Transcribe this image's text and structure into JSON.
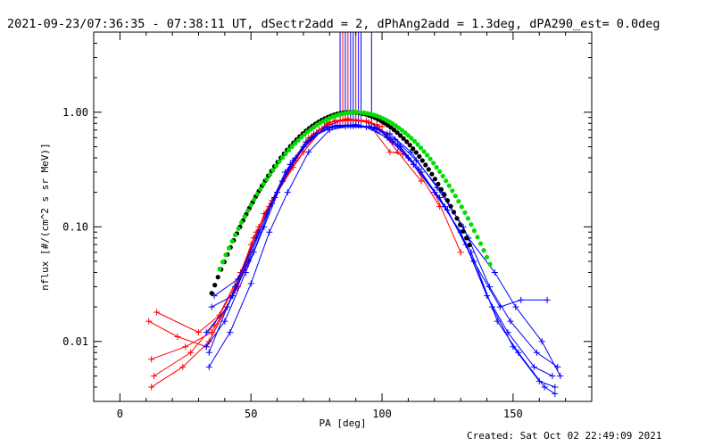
{
  "chart_data": {
    "type": "line",
    "title": "2021-09-23/07:36:35 - 07:38:11 UT, dSectr2add = 2, dPhAng2add = 1.3deg, dPA290_est=  0.0deg",
    "xlabel": "PA [deg]",
    "ylabel": "nflux [#/(cm^2 s sr MeV)]",
    "xlim": [
      -10,
      180
    ],
    "ylim": [
      0.003,
      5
    ],
    "yscale": "log",
    "x_ticks": [
      {
        "value": 0,
        "label": "0"
      },
      {
        "value": 50,
        "label": "50"
      },
      {
        "value": 100,
        "label": "100"
      },
      {
        "value": 150,
        "label": "150"
      }
    ],
    "y_ticks": [
      {
        "value": 1,
        "label": "1.00"
      },
      {
        "value": 0.1,
        "label": "0.10"
      },
      {
        "value": 0.01,
        "label": "0.01"
      }
    ],
    "grid": false,
    "colors": {
      "red_series": "#ff0000",
      "blue_series": "#0000ff",
      "black_fit": "#000000",
      "green_fit": "#00dd00",
      "frame": "#000000",
      "background": "#ffffff"
    },
    "red_series": [
      {
        "x": [
          12,
          25,
          35,
          45,
          52,
          58,
          65,
          72,
          80,
          88,
          95,
          102,
          110,
          120,
          130
        ],
        "y": [
          0.007,
          0.009,
          0.012,
          0.03,
          0.09,
          0.17,
          0.35,
          0.6,
          0.82,
          0.85,
          0.82,
          0.65,
          0.4,
          0.2,
          0.06
        ]
      },
      {
        "x": [
          11,
          22,
          33,
          43,
          50,
          57,
          64,
          71,
          79,
          87,
          96,
          104,
          112,
          122
        ],
        "y": [
          0.015,
          0.011,
          0.009,
          0.025,
          0.07,
          0.15,
          0.3,
          0.55,
          0.8,
          0.88,
          0.8,
          0.55,
          0.35,
          0.15
        ]
      },
      {
        "x": [
          13,
          27,
          36,
          46,
          53,
          60,
          67,
          74,
          82,
          90,
          98,
          106,
          115
        ],
        "y": [
          0.005,
          0.008,
          0.014,
          0.04,
          0.1,
          0.2,
          0.38,
          0.65,
          0.85,
          0.86,
          0.78,
          0.45,
          0.25
        ]
      },
      {
        "x": [
          14,
          30,
          38,
          48,
          55,
          62,
          70,
          78,
          86,
          94,
          103,
          108
        ],
        "y": [
          0.018,
          0.012,
          0.017,
          0.045,
          0.13,
          0.25,
          0.45,
          0.75,
          0.87,
          0.84,
          0.45,
          0.43
        ]
      },
      {
        "x": [
          12,
          24,
          34,
          44,
          51,
          59,
          66,
          76,
          84,
          92,
          100
        ],
        "y": [
          0.004,
          0.006,
          0.01,
          0.028,
          0.08,
          0.18,
          0.33,
          0.7,
          0.84,
          0.85,
          0.75
        ]
      }
    ],
    "blue_series": [
      {
        "x": [
          33,
          40,
          48,
          55,
          62,
          70,
          78,
          86,
          94,
          102,
          110,
          120,
          130,
          140,
          148,
          158,
          165
        ],
        "y": [
          0.009,
          0.015,
          0.04,
          0.1,
          0.25,
          0.5,
          0.72,
          0.75,
          0.74,
          0.6,
          0.4,
          0.2,
          0.09,
          0.025,
          0.012,
          0.006,
          0.005
        ]
      },
      {
        "x": [
          34,
          42,
          50,
          57,
          64,
          72,
          80,
          88,
          96,
          104,
          112,
          122,
          132,
          142,
          150,
          160,
          166
        ],
        "y": [
          0.006,
          0.012,
          0.032,
          0.09,
          0.2,
          0.45,
          0.7,
          0.76,
          0.73,
          0.55,
          0.35,
          0.18,
          0.07,
          0.02,
          0.009,
          0.0045,
          0.004
        ]
      },
      {
        "x": [
          33,
          41,
          49,
          56,
          63,
          71,
          79,
          87,
          95,
          103,
          111,
          121,
          131,
          141,
          149,
          159,
          167
        ],
        "y": [
          0.012,
          0.02,
          0.05,
          0.13,
          0.3,
          0.55,
          0.74,
          0.77,
          0.75,
          0.65,
          0.45,
          0.22,
          0.1,
          0.03,
          0.015,
          0.008,
          0.006
        ]
      },
      {
        "x": [
          35,
          43,
          51,
          58,
          65,
          73,
          81,
          89,
          97,
          105,
          113,
          123,
          133,
          143,
          151,
          161,
          168
        ],
        "y": [
          0.02,
          0.025,
          0.06,
          0.16,
          0.35,
          0.6,
          0.75,
          0.76,
          0.74,
          0.58,
          0.38,
          0.2,
          0.08,
          0.04,
          0.02,
          0.01,
          0.005
        ]
      },
      {
        "x": [
          34,
          44,
          52,
          59,
          66,
          74,
          82,
          90,
          98,
          106,
          114,
          124,
          134,
          144,
          152,
          162,
          166
        ],
        "y": [
          0.008,
          0.03,
          0.08,
          0.18,
          0.38,
          0.62,
          0.76,
          0.78,
          0.72,
          0.52,
          0.32,
          0.15,
          0.06,
          0.015,
          0.008,
          0.004,
          0.0035
        ]
      },
      {
        "x": [
          36,
          45,
          53,
          60,
          67,
          75,
          83,
          91,
          99,
          107,
          115,
          125,
          135,
          145,
          153,
          163
        ],
        "y": [
          0.025,
          0.035,
          0.09,
          0.2,
          0.4,
          0.65,
          0.77,
          0.77,
          0.7,
          0.5,
          0.3,
          0.14,
          0.05,
          0.02,
          0.023,
          0.023
        ]
      }
    ],
    "fit_curves": [
      {
        "color": "black",
        "center": 88,
        "width": 27.8,
        "x_range": [
          35,
          134
        ]
      },
      {
        "color": "green",
        "center": 90,
        "width": 29.3,
        "x_range": [
          38,
          142
        ]
      }
    ],
    "vertical_spikes": [
      {
        "x": 84,
        "color": "blue"
      },
      {
        "x": 85,
        "color": "red"
      },
      {
        "x": 86,
        "color": "blue"
      },
      {
        "x": 87,
        "color": "red"
      },
      {
        "x": 88,
        "color": "blue"
      },
      {
        "x": 89,
        "color": "blue"
      },
      {
        "x": 90,
        "color": "red"
      },
      {
        "x": 91,
        "color": "blue"
      },
      {
        "x": 92,
        "color": "blue"
      },
      {
        "x": 96,
        "color": "blue"
      }
    ]
  },
  "footer": {
    "created": "Created: Sat Oct 02 22:49:09 2021"
  }
}
